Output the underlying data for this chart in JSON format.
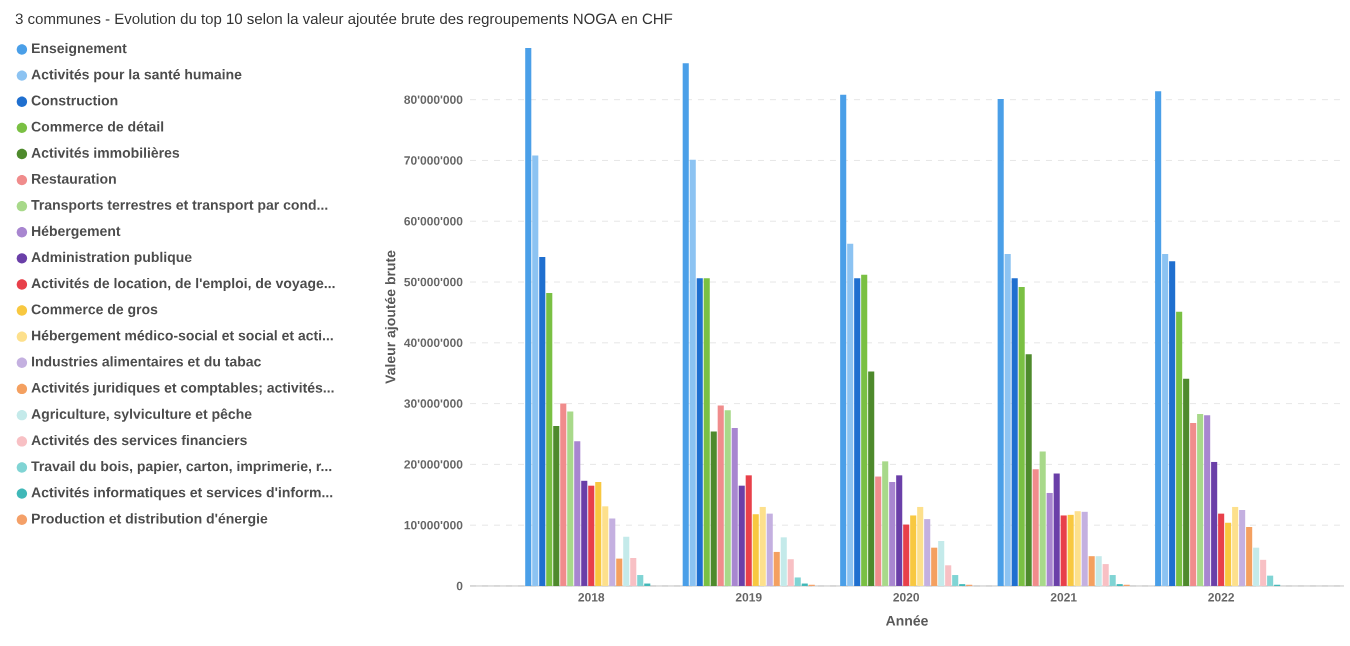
{
  "chart_data": {
    "type": "bar",
    "title": "3 communes - Evolution du top 10 selon la valeur ajoutée brute des regroupements NOGA en CHF",
    "xlabel": "Année",
    "ylabel": "Valeur ajoutée brute",
    "categories": [
      "2018",
      "2019",
      "2020",
      "2021",
      "2022"
    ],
    "ylim": [
      0,
      88500000
    ],
    "yticks": [
      0,
      {
        "value": 10000000,
        "label": "10'000'000"
      },
      {
        "value": 20000000,
        "label": "20'000'000"
      },
      {
        "value": 30000000,
        "label": "30'000'000"
      },
      {
        "value": 40000000,
        "label": "40'000'000"
      },
      {
        "value": 50000000,
        "label": "50'000'000"
      },
      {
        "value": 60000000,
        "label": "60'000'000"
      },
      {
        "value": 70000000,
        "label": "70'000'000"
      },
      {
        "value": 80000000,
        "label": "80'000'000"
      }
    ],
    "grid": "y",
    "legend": "left",
    "series": [
      {
        "name": "Enseignement",
        "color": "#4a9fe8",
        "values": [
          88500000,
          86000000,
          80800000,
          80100000,
          81400000
        ]
      },
      {
        "name": "Activités pour la santé humaine",
        "color": "#8cc3f2",
        "values": [
          70800000,
          70100000,
          56300000,
          54600000,
          54600000
        ]
      },
      {
        "name": "Construction",
        "color": "#1f6fcf",
        "values": [
          54100000,
          50600000,
          50600000,
          50600000,
          53400000
        ]
      },
      {
        "name": "Commerce de détail",
        "color": "#7ac043",
        "values": [
          48200000,
          50600000,
          51200000,
          49200000,
          45100000
        ]
      },
      {
        "name": "Activités immobilières",
        "color": "#4e8a2c",
        "values": [
          26300000,
          25400000,
          35300000,
          38100000,
          34100000
        ]
      },
      {
        "name": "Restauration",
        "color": "#f08c8c",
        "values": [
          30000000,
          29700000,
          18000000,
          19200000,
          26800000
        ]
      },
      {
        "name": "Transports terrestres et transport par cond...",
        "color": "#a8d98a",
        "values": [
          28700000,
          28900000,
          20500000,
          22100000,
          28300000
        ]
      },
      {
        "name": "Hébergement",
        "color": "#a886d0",
        "values": [
          23800000,
          26000000,
          17100000,
          15300000,
          28100000
        ]
      },
      {
        "name": "Administration publique",
        "color": "#6a3fa8",
        "values": [
          17300000,
          16500000,
          18200000,
          18500000,
          20400000
        ]
      },
      {
        "name": "Activités de location, de l'emploi, de voyage...",
        "color": "#e8404a",
        "values": [
          16500000,
          18200000,
          10100000,
          11600000,
          11900000
        ]
      },
      {
        "name": "Commerce de gros",
        "color": "#f8c840",
        "values": [
          17100000,
          11800000,
          11600000,
          11700000,
          10400000
        ]
      },
      {
        "name": "Hébergement médico-social et social et acti...",
        "color": "#fde08c",
        "values": [
          13100000,
          13000000,
          13000000,
          12300000,
          13000000
        ]
      },
      {
        "name": "Industries alimentaires et du tabac",
        "color": "#c4b0e0",
        "values": [
          11100000,
          11900000,
          11000000,
          12200000,
          12500000
        ]
      },
      {
        "name": "Activités juridiques et comptables; activités...",
        "color": "#f4a060",
        "values": [
          4500000,
          5600000,
          6300000,
          4900000,
          9700000
        ]
      },
      {
        "name": "Agriculture, sylviculture et pêche",
        "color": "#c4eaea",
        "values": [
          8100000,
          8000000,
          7400000,
          4900000,
          6300000
        ]
      },
      {
        "name": "Activités des services financiers",
        "color": "#f8c0c4",
        "values": [
          4600000,
          4400000,
          3400000,
          3600000,
          4300000
        ]
      },
      {
        "name": "Travail du bois, papier, carton, imprimerie, r...",
        "color": "#80d4d4",
        "values": [
          1800000,
          1400000,
          1800000,
          1800000,
          1700000
        ]
      },
      {
        "name": "Activités informatiques et services d'inform...",
        "color": "#40b8b8",
        "values": [
          400000,
          400000,
          300000,
          300000,
          200000
        ]
      },
      {
        "name": "Production et distribution d'énergie",
        "color": "#f4a068",
        "values": [
          null,
          200000,
          200000,
          200000,
          null
        ]
      }
    ]
  }
}
